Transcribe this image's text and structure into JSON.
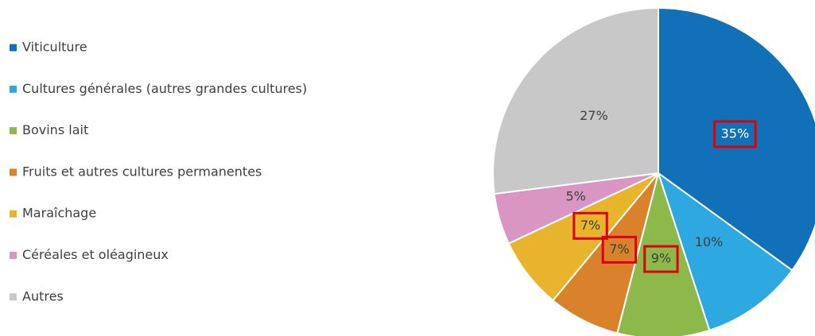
{
  "chart_data": {
    "type": "pie",
    "categories": [
      "Viticulture",
      "Cultures générales (autres grandes cultures)",
      "Bovins lait",
      "Fruits et autres cultures permanentes",
      "Maraîchage",
      "Céréales et oléagineux",
      "Autres"
    ],
    "values": [
      35,
      10,
      9,
      7,
      7,
      5,
      27
    ],
    "value_labels": [
      "35%",
      "10%",
      "9%",
      "7%",
      "7%",
      "5%",
      "27%"
    ],
    "colors": [
      "#1170b8",
      "#2ea8e0",
      "#8db84a",
      "#d9822b",
      "#e8b42e",
      "#d996c3",
      "#c8c8c8"
    ],
    "legend": "left",
    "highlighted": [
      0,
      2,
      3,
      4
    ],
    "highlight_color": "#e00000"
  }
}
